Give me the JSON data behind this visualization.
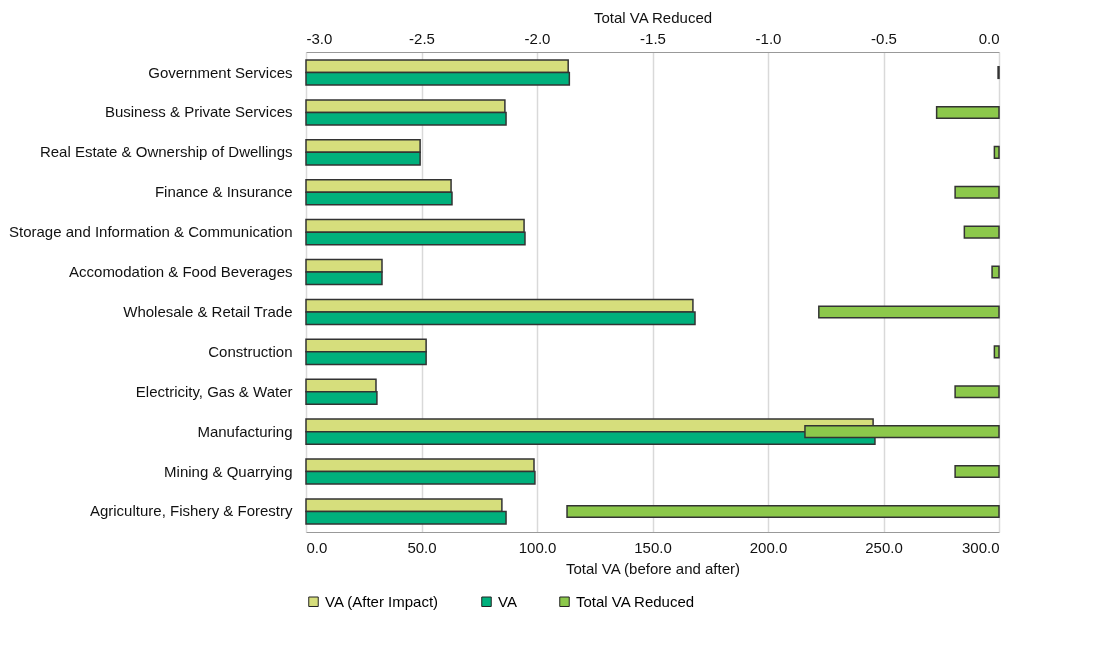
{
  "chart_data": {
    "type": "bar",
    "orientation": "horizontal",
    "xlabel": "Total VA  (before and after)",
    "x2label": "Total VA Reduced",
    "categories": [
      "Government Services",
      "Business & Private Services",
      "Real Estate & Ownership of Dwellings",
      "Finance & Insurance",
      "Storage and Information & Communication",
      "Accomodation & Food Beverages",
      "Wholesale & Retail Trade",
      "Construction",
      "Electricity, Gas & Water",
      "Manufacturing",
      "Mining & Quarrying",
      "Agriculture, Fishery & Forestry"
    ],
    "series": [
      {
        "name": "VA (After Impact)",
        "color": "#d6de7c",
        "values": [
          113.5,
          86.1,
          49.4,
          62.8,
          94.4,
          32.9,
          167.5,
          52,
          30.3,
          245.5,
          98.7,
          84.8
        ]
      },
      {
        "name": "VA",
        "color": "#00b07c",
        "values": [
          114,
          86.6,
          49.4,
          63.2,
          94.8,
          32.9,
          168.4,
          52,
          30.7,
          246.3,
          99.1,
          86.6
        ]
      },
      {
        "name": "Total VA Reduced",
        "color": "#8cc84b",
        "axis": "x2",
        "values": [
          -0.004,
          -0.27,
          -0.02,
          -0.19,
          -0.15,
          -0.03,
          -0.78,
          -0.02,
          -0.19,
          -0.84,
          -0.19,
          -1.87
        ]
      }
    ],
    "xlim": [
      0,
      300
    ],
    "xticks": [
      {
        "value": 0,
        "label": "0.0"
      },
      {
        "value": 50,
        "label": "50.0"
      },
      {
        "value": 100,
        "label": "100.0"
      },
      {
        "value": 150,
        "label": "150.0"
      },
      {
        "value": 200,
        "label": "200.0"
      },
      {
        "value": 250,
        "label": "250.0"
      },
      {
        "value": 300,
        "label": "300.0"
      }
    ],
    "x2lim": [
      -3,
      0
    ],
    "x2ticks": [
      {
        "value": -3,
        "label": "-3.0"
      },
      {
        "value": -2.5,
        "label": "-2.5"
      },
      {
        "value": -2,
        "label": "-2.0"
      },
      {
        "value": -1.5,
        "label": "-1.5"
      },
      {
        "value": -1,
        "label": "-1.0"
      },
      {
        "value": -0.5,
        "label": "-0.5"
      },
      {
        "value": 0,
        "label": "0.0"
      }
    ],
    "grid": "x",
    "legend": "bottom"
  }
}
